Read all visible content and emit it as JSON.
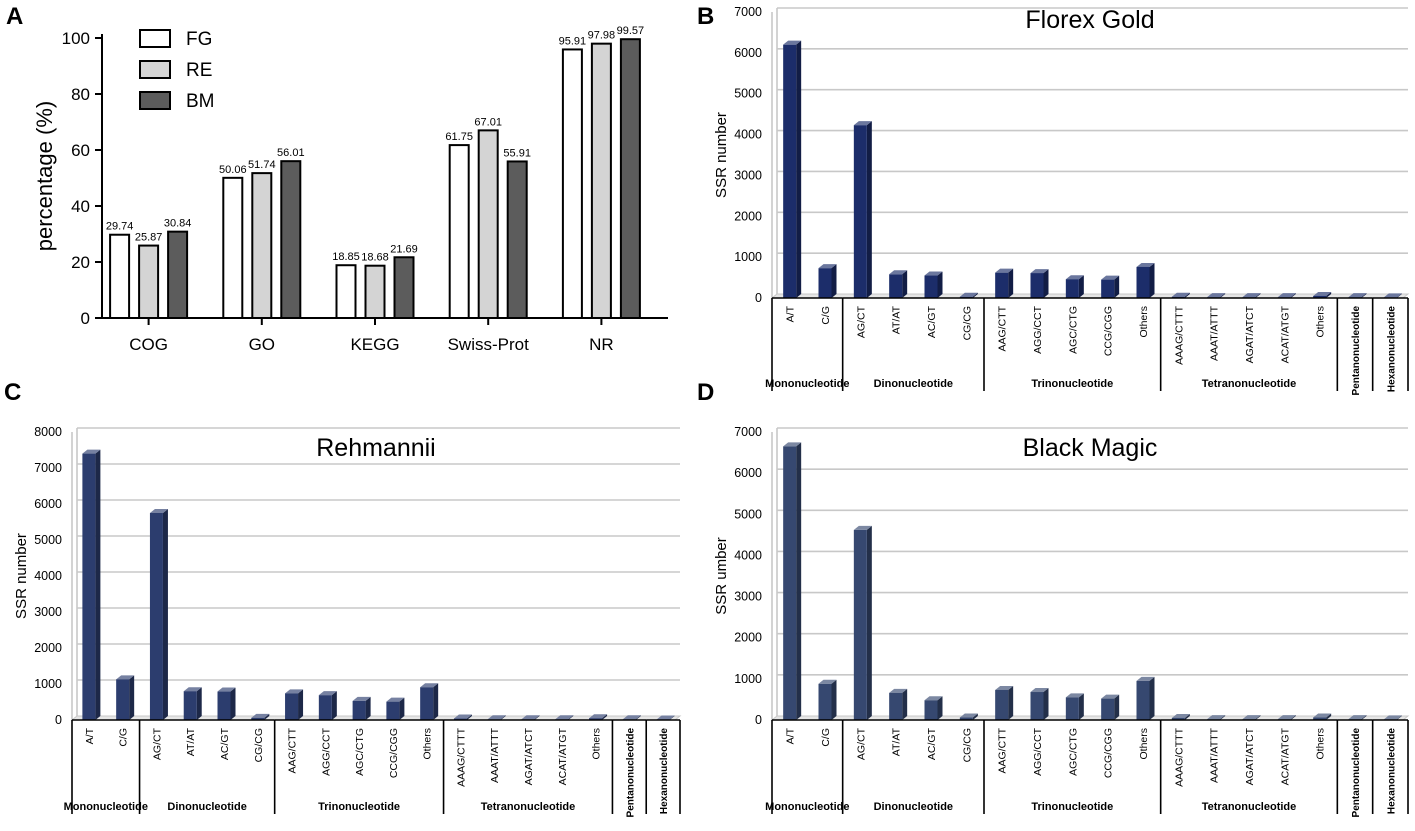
{
  "panels": [
    {
      "letter": "A"
    },
    {
      "letter": "B"
    },
    {
      "letter": "C"
    },
    {
      "letter": "D"
    }
  ],
  "chart_data": [
    {
      "panel": "A",
      "type": "bar",
      "title": "",
      "xlabel": "",
      "ylabel": "percentage (%)",
      "ylim": [
        0,
        100
      ],
      "yticks": [
        0,
        20,
        40,
        60,
        80,
        100
      ],
      "categories": [
        "COG",
        "GO",
        "KEGG",
        "Swiss-Prot",
        "NR"
      ],
      "legend_position": "top-left",
      "series": [
        {
          "name": "FG",
          "color": "#ffffff",
          "values": [
            29.74,
            50.06,
            18.85,
            61.75,
            95.91
          ],
          "labels": [
            "29.74",
            "50.06",
            "18.85",
            "61.75",
            "95.91"
          ]
        },
        {
          "name": "RE",
          "color": "#d4d4d4",
          "values": [
            25.87,
            51.74,
            18.68,
            67.01,
            97.98
          ],
          "labels": [
            "25.87",
            "51.74",
            "18.68",
            "67.01",
            "97.98"
          ]
        },
        {
          "name": "BM",
          "color": "#5c5c5c",
          "values": [
            30.84,
            56.01,
            21.69,
            55.91,
            99.57
          ],
          "labels": [
            "30.84",
            "56.01",
            "21.69",
            "55.91",
            "99.57"
          ]
        }
      ]
    },
    {
      "panel": "B",
      "type": "bar",
      "title": "Florex Gold",
      "ylabel": "SSR number",
      "ylim": [
        0,
        7000
      ],
      "yticks": [
        0,
        1000,
        2000,
        3000,
        4000,
        5000,
        6000,
        7000
      ],
      "color": "#1c2d6a",
      "categories": [
        "A/T",
        "C/G",
        "AG/CT",
        "AT/AT",
        "AC/GT",
        "CG/CG",
        "AAG/CTT",
        "AGG/CCT",
        "AGC/CTG",
        "CCG/CGG",
        "Others",
        "AAAG/CTTT",
        "AAAT/ATTT",
        "AGAT/ATCT",
        "ACAT/ATGT",
        "Others",
        "Pentanonucleotide",
        "Hexanonucleotide"
      ],
      "values": [
        6200,
        730,
        4230,
        580,
        550,
        30,
        620,
        610,
        460,
        450,
        760,
        30,
        20,
        20,
        20,
        50,
        20,
        15
      ],
      "groups": [
        {
          "label": "Mononucleotide",
          "count": 2
        },
        {
          "label": "Dinonucleotide",
          "count": 4
        },
        {
          "label": "Trinonucleotide",
          "count": 5
        },
        {
          "label": "Tetranonucleotide",
          "count": 5
        },
        {
          "label": "",
          "count": 1
        },
        {
          "label": "",
          "count": 1
        }
      ]
    },
    {
      "panel": "C",
      "type": "bar",
      "title": "Rehmannii",
      "ylabel": "SSR number",
      "ylim": [
        0,
        8000
      ],
      "yticks": [
        0,
        1000,
        2000,
        3000,
        4000,
        5000,
        6000,
        7000,
        8000
      ],
      "color": "#2c3d6e",
      "categories": [
        "A/T",
        "C/G",
        "AG/CT",
        "AT/AT",
        "AC/GT",
        "CG/CG",
        "AAG/CTT",
        "AGG/CCT",
        "AGC/CTG",
        "CCG/CGG",
        "Others",
        "AAAG/CTTT",
        "AAAT/ATTT",
        "AGAT/ATCT",
        "ACAT/ATGT",
        "Others",
        "Pentanonucleotide",
        "Hexanonucleotide"
      ],
      "values": [
        7400,
        1130,
        5750,
        800,
        790,
        60,
        740,
        690,
        530,
        510,
        910,
        40,
        20,
        20,
        20,
        50,
        20,
        15
      ],
      "groups": [
        {
          "label": "Mononucleotide",
          "count": 2
        },
        {
          "label": "Dinonucleotide",
          "count": 4
        },
        {
          "label": "Trinonucleotide",
          "count": 5
        },
        {
          "label": "Tetranonucleotide",
          "count": 5
        },
        {
          "label": "",
          "count": 1
        },
        {
          "label": "",
          "count": 1
        }
      ]
    },
    {
      "panel": "D",
      "type": "bar",
      "title": "Black Magic",
      "ylabel": "SSR umber",
      "ylim": [
        0,
        7000
      ],
      "yticks": [
        0,
        1000,
        2000,
        3000,
        4000,
        5000,
        6000,
        7000
      ],
      "color": "#364870",
      "categories": [
        "A/T",
        "C/G",
        "AG/CT",
        "AT/AT",
        "AC/GT",
        "CG/CG",
        "AAG/CTT",
        "AGG/CCT",
        "AGC/CTG",
        "CCG/CGG",
        "Others",
        "AAAG/CTTT",
        "AAAT/ATTT",
        "AGAT/ATCT",
        "ACAT/ATGT",
        "Others",
        "Pentanonucleotide",
        "Hexanonucleotide"
      ],
      "values": [
        6650,
        880,
        4620,
        660,
        480,
        60,
        730,
        680,
        550,
        520,
        950,
        50,
        20,
        20,
        20,
        60,
        20,
        15
      ],
      "groups": [
        {
          "label": "Mononucleotide",
          "count": 2
        },
        {
          "label": "Dinonucleotide",
          "count": 4
        },
        {
          "label": "Trinonucleotide",
          "count": 5
        },
        {
          "label": "Tetranonucleotide",
          "count": 5
        },
        {
          "label": "",
          "count": 1
        },
        {
          "label": "",
          "count": 1
        }
      ]
    }
  ],
  "group_labels_vertical": [
    "Pentanonucleotide",
    "Hexanonucleotide"
  ]
}
